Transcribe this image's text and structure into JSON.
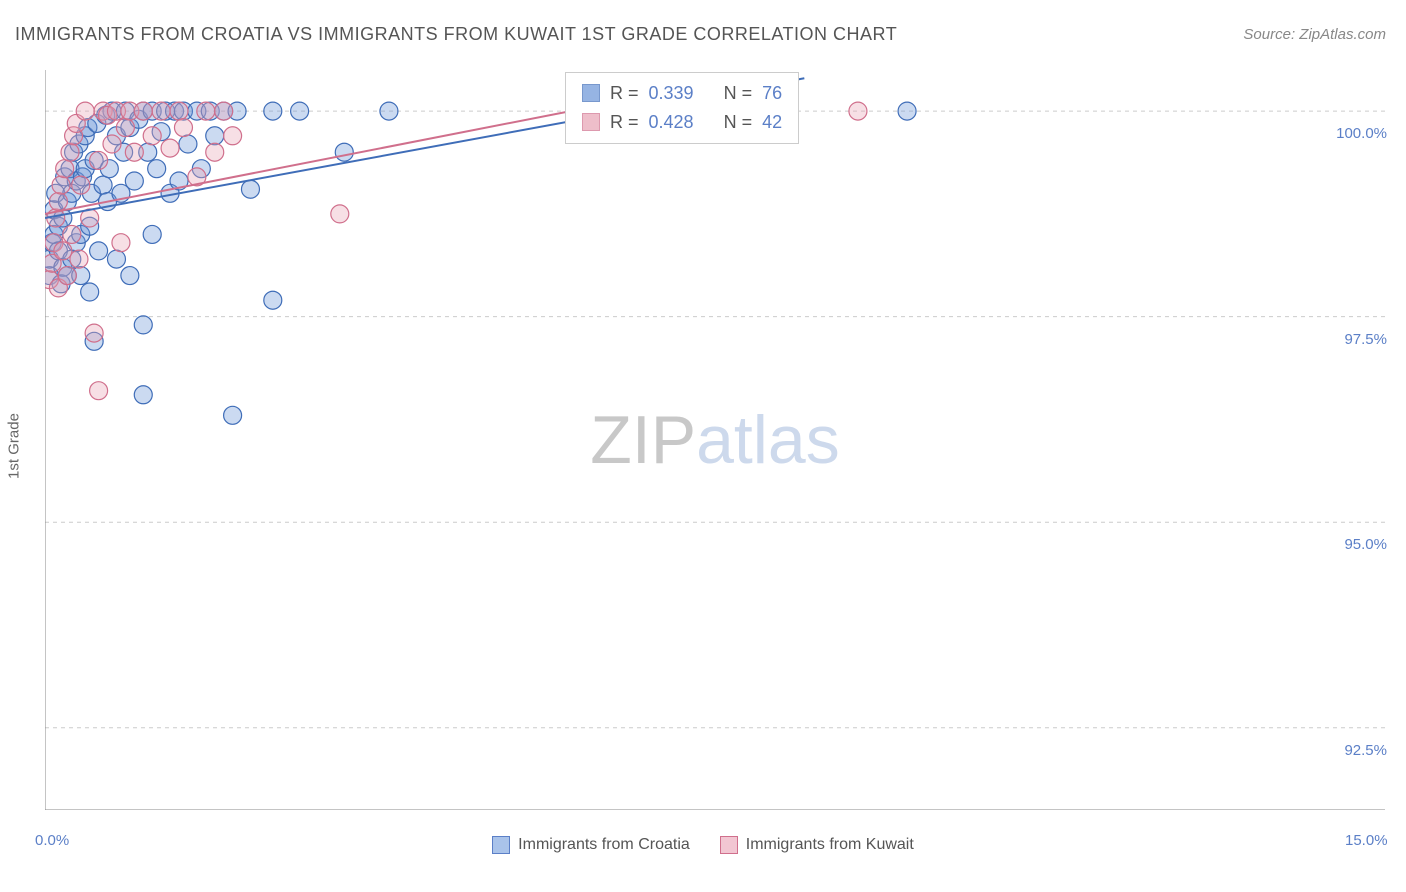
{
  "title": "IMMIGRANTS FROM CROATIA VS IMMIGRANTS FROM KUWAIT 1ST GRADE CORRELATION CHART",
  "source_label": "Source:",
  "source_name": "ZipAtlas.com",
  "y_axis_label": "1st Grade",
  "watermark": {
    "part1": "ZIP",
    "part2": "atlas"
  },
  "chart": {
    "type": "scatter",
    "background": "#ffffff",
    "grid_color": "#cccccc",
    "axis_color": "#888888",
    "xlim": [
      0,
      15
    ],
    "ylim": [
      91.5,
      100.5
    ],
    "x_ticks": [
      0,
      1.25,
      2.5,
      3.75,
      5,
      6.25,
      7.5,
      8.75,
      10,
      11.25,
      12.5,
      13.75,
      15
    ],
    "x_tick_labels": {
      "0": "0.0%",
      "15": "15.0%"
    },
    "y_gridlines": [
      92.5,
      95.0,
      97.5,
      100.0
    ],
    "y_tick_labels": [
      "92.5%",
      "95.0%",
      "97.5%",
      "100.0%"
    ],
    "marker_radius": 9,
    "marker_opacity": 0.35,
    "trend_line_width": 2,
    "series": [
      {
        "name": "Immigrants from Croatia",
        "color_fill": "#6b95d8",
        "color_stroke": "#3f6db8",
        "R": "0.339",
        "N": "76",
        "trend": {
          "x1": 0,
          "y1": 98.7,
          "x2": 8.5,
          "y2": 100.4
        },
        "points": [
          [
            0.05,
            98.0
          ],
          [
            0.05,
            98.2
          ],
          [
            0.08,
            98.4
          ],
          [
            0.1,
            98.5
          ],
          [
            0.1,
            98.8
          ],
          [
            0.12,
            99.0
          ],
          [
            0.15,
            98.3
          ],
          [
            0.15,
            98.6
          ],
          [
            0.18,
            97.9
          ],
          [
            0.2,
            98.1
          ],
          [
            0.2,
            98.7
          ],
          [
            0.22,
            99.2
          ],
          [
            0.25,
            98.0
          ],
          [
            0.25,
            98.9
          ],
          [
            0.28,
            99.3
          ],
          [
            0.3,
            98.2
          ],
          [
            0.3,
            99.0
          ],
          [
            0.32,
            99.5
          ],
          [
            0.35,
            98.4
          ],
          [
            0.35,
            99.15
          ],
          [
            0.38,
            99.6
          ],
          [
            0.4,
            98.0
          ],
          [
            0.4,
            98.5
          ],
          [
            0.42,
            99.2
          ],
          [
            0.45,
            99.3
          ],
          [
            0.45,
            99.7
          ],
          [
            0.48,
            99.8
          ],
          [
            0.5,
            97.8
          ],
          [
            0.5,
            98.6
          ],
          [
            0.52,
            99.0
          ],
          [
            0.55,
            97.2
          ],
          [
            0.55,
            99.4
          ],
          [
            0.58,
            99.85
          ],
          [
            0.6,
            98.3
          ],
          [
            0.65,
            99.1
          ],
          [
            0.68,
            99.95
          ],
          [
            0.7,
            98.9
          ],
          [
            0.72,
            99.3
          ],
          [
            0.75,
            100.0
          ],
          [
            0.8,
            98.2
          ],
          [
            0.8,
            99.7
          ],
          [
            0.85,
            99.0
          ],
          [
            0.88,
            99.5
          ],
          [
            0.9,
            100.0
          ],
          [
            0.95,
            98.0
          ],
          [
            0.95,
            99.8
          ],
          [
            1.0,
            99.15
          ],
          [
            1.05,
            99.9
          ],
          [
            1.1,
            100.0
          ],
          [
            1.1,
            97.4
          ],
          [
            1.15,
            99.5
          ],
          [
            1.2,
            98.5
          ],
          [
            1.2,
            100.0
          ],
          [
            1.25,
            99.3
          ],
          [
            1.3,
            99.75
          ],
          [
            1.35,
            100.0
          ],
          [
            1.4,
            99.0
          ],
          [
            1.45,
            100.0
          ],
          [
            1.5,
            99.15
          ],
          [
            1.55,
            100.0
          ],
          [
            1.6,
            99.6
          ],
          [
            1.7,
            100.0
          ],
          [
            1.75,
            99.3
          ],
          [
            1.85,
            100.0
          ],
          [
            1.9,
            99.7
          ],
          [
            2.0,
            100.0
          ],
          [
            2.1,
            96.3
          ],
          [
            2.15,
            100.0
          ],
          [
            2.3,
            99.05
          ],
          [
            2.55,
            100.0
          ],
          [
            2.55,
            97.7
          ],
          [
            2.85,
            100.0
          ],
          [
            3.35,
            99.5
          ],
          [
            3.85,
            100.0
          ],
          [
            9.65,
            100.0
          ],
          [
            1.1,
            96.55
          ]
        ]
      },
      {
        "name": "Immigrants from Kuwait",
        "color_fill": "#e8a3b5",
        "color_stroke": "#d06f8c",
        "R": "0.428",
        "N": "42",
        "trend": {
          "x1": 0,
          "y1": 98.75,
          "x2": 8.0,
          "y2": 100.45
        },
        "points": [
          [
            0.05,
            97.95
          ],
          [
            0.08,
            98.15
          ],
          [
            0.1,
            98.4
          ],
          [
            0.12,
            98.7
          ],
          [
            0.15,
            97.85
          ],
          [
            0.15,
            98.9
          ],
          [
            0.18,
            99.1
          ],
          [
            0.2,
            98.3
          ],
          [
            0.22,
            99.3
          ],
          [
            0.25,
            98.0
          ],
          [
            0.28,
            99.5
          ],
          [
            0.3,
            98.5
          ],
          [
            0.32,
            99.7
          ],
          [
            0.35,
            99.85
          ],
          [
            0.38,
            98.2
          ],
          [
            0.4,
            99.1
          ],
          [
            0.45,
            100.0
          ],
          [
            0.5,
            98.7
          ],
          [
            0.55,
            97.3
          ],
          [
            0.6,
            99.4
          ],
          [
            0.65,
            100.0
          ],
          [
            0.7,
            99.95
          ],
          [
            0.75,
            99.6
          ],
          [
            0.8,
            100.0
          ],
          [
            0.85,
            98.4
          ],
          [
            0.9,
            99.8
          ],
          [
            0.95,
            100.0
          ],
          [
            1.0,
            99.5
          ],
          [
            1.1,
            100.0
          ],
          [
            1.2,
            99.7
          ],
          [
            1.3,
            100.0
          ],
          [
            1.4,
            99.55
          ],
          [
            1.5,
            100.0
          ],
          [
            1.55,
            99.8
          ],
          [
            1.7,
            99.2
          ],
          [
            1.8,
            100.0
          ],
          [
            1.9,
            99.5
          ],
          [
            2.0,
            100.0
          ],
          [
            2.1,
            99.7
          ],
          [
            3.3,
            98.75
          ],
          [
            0.6,
            96.6
          ],
          [
            9.1,
            100.0
          ]
        ]
      }
    ]
  },
  "bottom_legend": [
    {
      "label": "Immigrants from Croatia",
      "fill": "#a9c3ea",
      "stroke": "#5b7fc7"
    },
    {
      "label": "Immigrants from Kuwait",
      "fill": "#f2c6d2",
      "stroke": "#d06f8c"
    }
  ],
  "stats_box": {
    "r_label": "R =",
    "n_label": "N ="
  }
}
